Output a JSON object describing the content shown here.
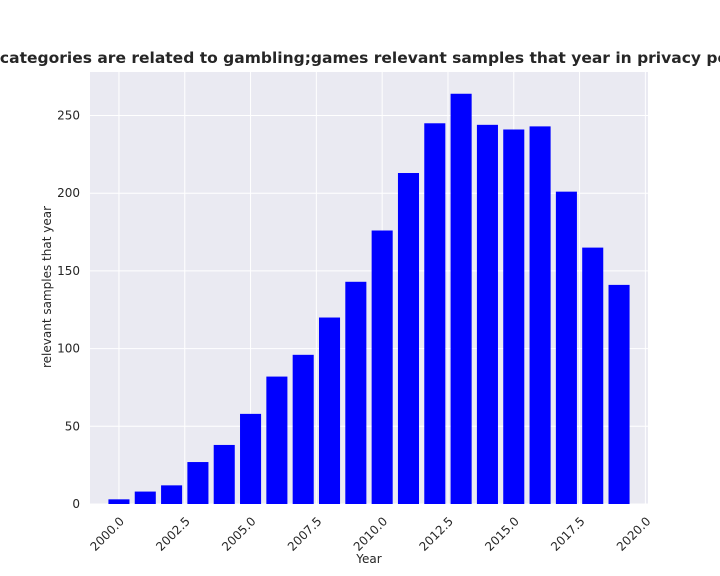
{
  "chart_data": {
    "type": "bar",
    "title": "Years when categories are related to gambling;games relevant samples that year in privacy policies by Year",
    "xlabel": "Year",
    "ylabel": "relevant samples that year",
    "x": [
      2000,
      2001,
      2002,
      2003,
      2004,
      2005,
      2006,
      2007,
      2008,
      2009,
      2010,
      2011,
      2012,
      2013,
      2014,
      2015,
      2016,
      2017,
      2018,
      2019
    ],
    "values": [
      3,
      8,
      12,
      27,
      38,
      58,
      82,
      96,
      120,
      143,
      176,
      213,
      245,
      264,
      244,
      241,
      243,
      201,
      165,
      141
    ],
    "xlim": [
      1998.9,
      2020.1
    ],
    "ylim": [
      0,
      278
    ],
    "xticks": [
      2000.0,
      2002.5,
      2005.0,
      2007.5,
      2010.0,
      2012.5,
      2015.0,
      2017.5,
      2020.0
    ],
    "xtick_labels": [
      "2000.0",
      "2002.5",
      "2005.0",
      "2007.5",
      "2010.0",
      "2012.5",
      "2015.0",
      "2017.5",
      "2020.0"
    ],
    "yticks": [
      0,
      50,
      100,
      150,
      200,
      250
    ],
    "ytick_labels": [
      "0",
      "50",
      "100",
      "150",
      "200",
      "250"
    ],
    "bar_color": "#0000ff",
    "background_color": "#eaeaf2",
    "grid": true
  }
}
